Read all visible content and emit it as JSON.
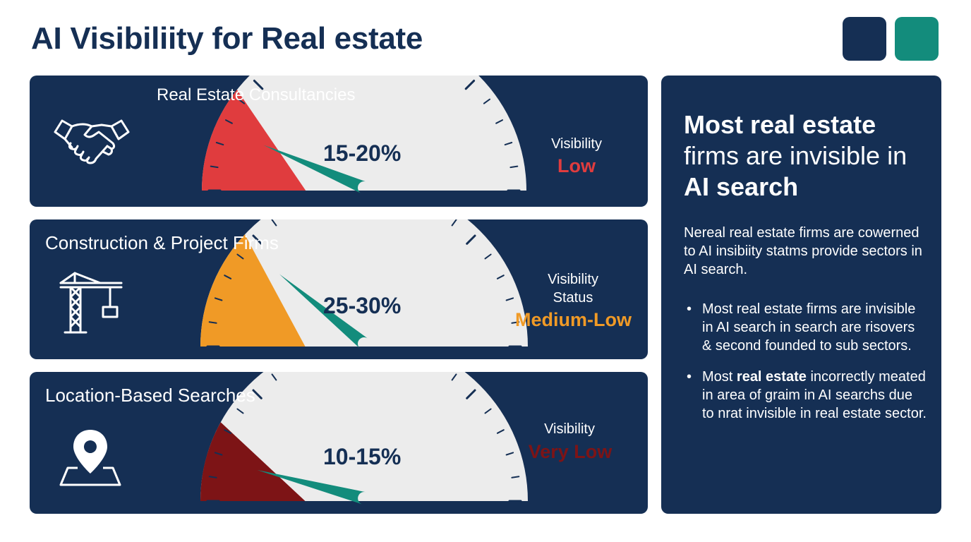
{
  "page": {
    "title": "AI Visibiliity for Real estate"
  },
  "colors": {
    "navy": "#152f54",
    "teal": "#138c7c",
    "gauge_face": "#ececec",
    "low": "#e03c3e",
    "medium_low": "#f09a26",
    "very_low": "#7d1416"
  },
  "sectors": [
    {
      "name": "Real Estate Consultancies",
      "icon": "handshake-icon",
      "range": "15-20%",
      "value_low": 15,
      "value_high": 20,
      "visibility_label": "Visibility",
      "status": "Low",
      "status_color": "#e03c3e"
    },
    {
      "name": "Construction & Project Firms",
      "icon": "crane-icon",
      "range": "25-30%",
      "value_low": 25,
      "value_high": 30,
      "visibility_label": "Visibility Status",
      "status": "Medium-Low",
      "status_color": "#f09a26"
    },
    {
      "name": "Location-Based Searches",
      "icon": "map-pin-icon",
      "range": "10-15%",
      "value_low": 10,
      "value_high": 15,
      "visibility_label": "Visibility",
      "status": "Very Low",
      "status_color": "#7d1416"
    }
  ],
  "summary": {
    "headline_bold": "Most real estate",
    "headline_regular": "firms are invisible in",
    "headline_bold_end": "AI search",
    "intro": "Nereal real estate firms are cowerned to AI insibiity statms provide sectors in AI search.",
    "bullet_marker": "•",
    "bullet_1": "Most real estate firms are invisible in AI search in search are risovers & second founded to sub sectors.",
    "bullet_2_start": "Most",
    "bullet_2_bold": "real estate",
    "bullet_2_rest": "incorrectly meated in area of graim in AI searchs due to nrat invisible in real estate sector."
  }
}
